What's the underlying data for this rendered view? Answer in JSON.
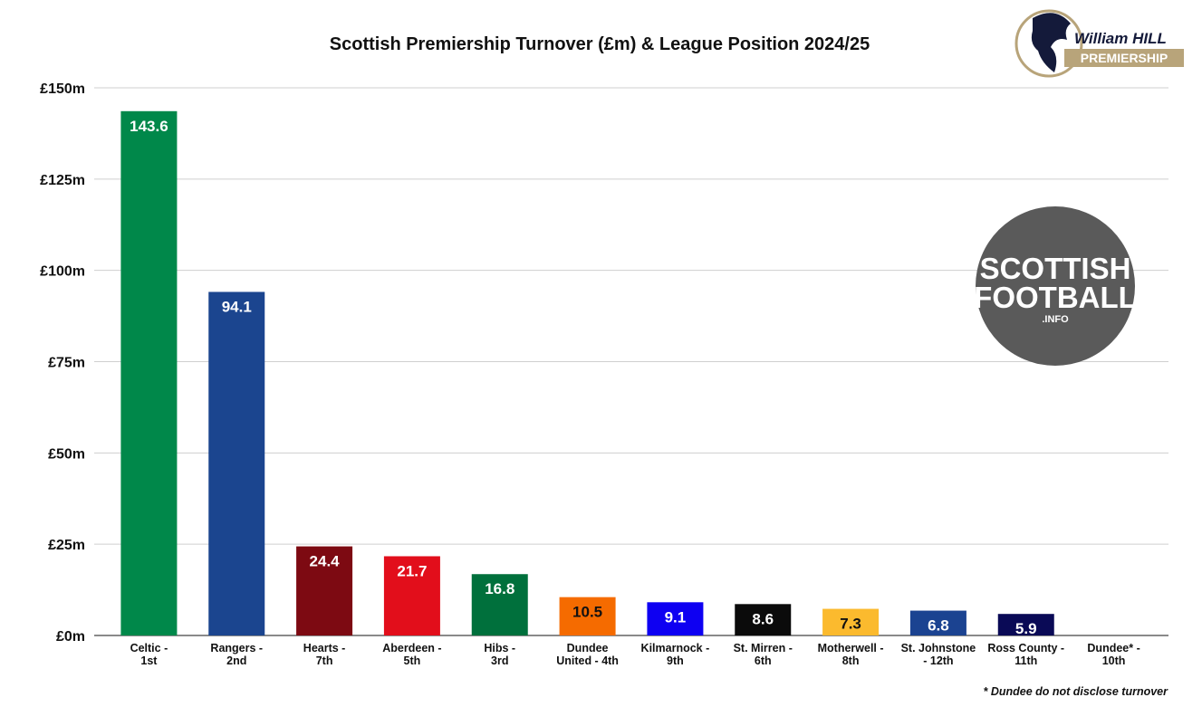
{
  "chart_data": {
    "type": "bar",
    "title": "Scottish Premiership Turnover (£m) & League Position 2024/25",
    "categories": [
      [
        "Celtic -",
        "1st"
      ],
      [
        "Rangers -",
        "2nd"
      ],
      [
        "Hearts -",
        "7th"
      ],
      [
        "Aberdeen -",
        "5th"
      ],
      [
        "Hibs -",
        "3rd"
      ],
      [
        "Dundee",
        "United - 4th"
      ],
      [
        "Kilmarnock -",
        "9th"
      ],
      [
        "St. Mirren -",
        "6th"
      ],
      [
        "Motherwell -",
        "8th"
      ],
      [
        "St. Johnstone",
        "- 12th"
      ],
      [
        "Ross County -",
        "11th"
      ],
      [
        "Dundee* -",
        "10th"
      ]
    ],
    "values": [
      143.6,
      94.1,
      24.4,
      21.7,
      16.8,
      10.5,
      9.1,
      8.6,
      7.3,
      6.8,
      5.9,
      null
    ],
    "data_labels": [
      "143.6",
      "94.1",
      "24.4",
      "21.7",
      "16.8",
      "10.5",
      "9.1",
      "8.6",
      "7.3",
      "6.8",
      "5.9",
      ""
    ],
    "colors": [
      "#00884a",
      "#1b458f",
      "#7d0a12",
      "#e20e1b",
      "#00703c",
      "#f56b00",
      "#0e00f2",
      "#0b0b0b",
      "#fbba2e",
      "#1b4391",
      "#0a0a56",
      "#1b458f"
    ],
    "label_colors": [
      "#ffffff",
      "#ffffff",
      "#ffffff",
      "#ffffff",
      "#ffffff",
      "#111111",
      "#ffffff",
      "#ffffff",
      "#111111",
      "#ffffff",
      "#ffffff",
      "#ffffff"
    ],
    "yticks": [
      0,
      25,
      50,
      75,
      100,
      125,
      150
    ],
    "ytick_labels": [
      "£0m",
      "£25m",
      "£50m",
      "£75m",
      "£100m",
      "£125m",
      "£150m"
    ],
    "ylim": [
      0,
      150
    ],
    "grid": true,
    "legend": "none",
    "footnote": "* Dundee do not disclose turnover"
  },
  "logos": {
    "sponsor_text": "William HILL",
    "premiership_text": "PREMIERSHIP",
    "site_line1": "SCOTTISH",
    "site_line2": "FOOTBALL",
    "site_line3": ".INFO"
  }
}
